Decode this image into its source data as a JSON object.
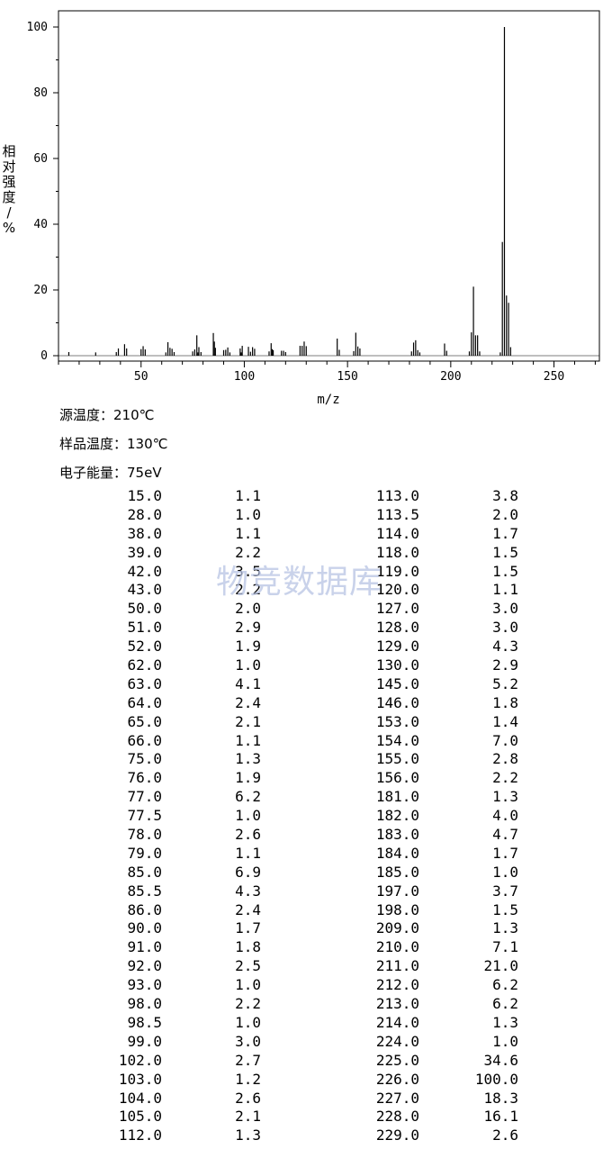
{
  "chart_data": {
    "type": "bar",
    "xlabel": "m/z",
    "ylabel": "相对强度/%",
    "xlim": [
      10,
      272
    ],
    "ylim": [
      0,
      105
    ],
    "x_ticks": [
      50,
      100,
      150,
      200,
      250
    ],
    "y_ticks": [
      0,
      20,
      40,
      60,
      80,
      100
    ],
    "grid": false,
    "series_color": "#000000",
    "peaks": [
      {
        "mz": 15.0,
        "intensity": 1.1
      },
      {
        "mz": 28.0,
        "intensity": 1.0
      },
      {
        "mz": 38.0,
        "intensity": 1.1
      },
      {
        "mz": 39.0,
        "intensity": 2.2
      },
      {
        "mz": 42.0,
        "intensity": 3.5
      },
      {
        "mz": 43.0,
        "intensity": 2.2
      },
      {
        "mz": 50.0,
        "intensity": 2.0
      },
      {
        "mz": 51.0,
        "intensity": 2.9
      },
      {
        "mz": 52.0,
        "intensity": 1.9
      },
      {
        "mz": 62.0,
        "intensity": 1.0
      },
      {
        "mz": 63.0,
        "intensity": 4.1
      },
      {
        "mz": 64.0,
        "intensity": 2.4
      },
      {
        "mz": 65.0,
        "intensity": 2.1
      },
      {
        "mz": 66.0,
        "intensity": 1.1
      },
      {
        "mz": 75.0,
        "intensity": 1.3
      },
      {
        "mz": 76.0,
        "intensity": 1.9
      },
      {
        "mz": 77.0,
        "intensity": 6.2
      },
      {
        "mz": 77.5,
        "intensity": 1.0
      },
      {
        "mz": 78.0,
        "intensity": 2.6
      },
      {
        "mz": 79.0,
        "intensity": 1.1
      },
      {
        "mz": 85.0,
        "intensity": 6.9
      },
      {
        "mz": 85.5,
        "intensity": 4.3
      },
      {
        "mz": 86.0,
        "intensity": 2.4
      },
      {
        "mz": 90.0,
        "intensity": 1.7
      },
      {
        "mz": 91.0,
        "intensity": 1.8
      },
      {
        "mz": 92.0,
        "intensity": 2.5
      },
      {
        "mz": 93.0,
        "intensity": 1.0
      },
      {
        "mz": 98.0,
        "intensity": 2.2
      },
      {
        "mz": 98.5,
        "intensity": 1.0
      },
      {
        "mz": 99.0,
        "intensity": 3.0
      },
      {
        "mz": 102.0,
        "intensity": 2.7
      },
      {
        "mz": 103.0,
        "intensity": 1.2
      },
      {
        "mz": 104.0,
        "intensity": 2.6
      },
      {
        "mz": 105.0,
        "intensity": 2.1
      },
      {
        "mz": 112.0,
        "intensity": 1.3
      },
      {
        "mz": 113.0,
        "intensity": 3.8
      },
      {
        "mz": 113.5,
        "intensity": 2.0
      },
      {
        "mz": 114.0,
        "intensity": 1.7
      },
      {
        "mz": 118.0,
        "intensity": 1.5
      },
      {
        "mz": 119.0,
        "intensity": 1.5
      },
      {
        "mz": 120.0,
        "intensity": 1.1
      },
      {
        "mz": 127.0,
        "intensity": 3.0
      },
      {
        "mz": 128.0,
        "intensity": 3.0
      },
      {
        "mz": 129.0,
        "intensity": 4.3
      },
      {
        "mz": 130.0,
        "intensity": 2.9
      },
      {
        "mz": 145.0,
        "intensity": 5.2
      },
      {
        "mz": 146.0,
        "intensity": 1.8
      },
      {
        "mz": 153.0,
        "intensity": 1.4
      },
      {
        "mz": 154.0,
        "intensity": 7.0
      },
      {
        "mz": 155.0,
        "intensity": 2.8
      },
      {
        "mz": 156.0,
        "intensity": 2.2
      },
      {
        "mz": 181.0,
        "intensity": 1.3
      },
      {
        "mz": 182.0,
        "intensity": 4.0
      },
      {
        "mz": 183.0,
        "intensity": 4.7
      },
      {
        "mz": 184.0,
        "intensity": 1.7
      },
      {
        "mz": 185.0,
        "intensity": 1.0
      },
      {
        "mz": 197.0,
        "intensity": 3.7
      },
      {
        "mz": 198.0,
        "intensity": 1.5
      },
      {
        "mz": 209.0,
        "intensity": 1.3
      },
      {
        "mz": 210.0,
        "intensity": 7.1
      },
      {
        "mz": 211.0,
        "intensity": 21.0
      },
      {
        "mz": 212.0,
        "intensity": 6.2
      },
      {
        "mz": 213.0,
        "intensity": 6.2
      },
      {
        "mz": 214.0,
        "intensity": 1.3
      },
      {
        "mz": 224.0,
        "intensity": 1.0
      },
      {
        "mz": 225.0,
        "intensity": 34.6
      },
      {
        "mz": 226.0,
        "intensity": 100.0
      },
      {
        "mz": 227.0,
        "intensity": 18.3
      },
      {
        "mz": 228.0,
        "intensity": 16.1
      },
      {
        "mz": 229.0,
        "intensity": 2.6
      }
    ]
  },
  "conditions": {
    "source_temp": "源温度：210℃",
    "sample_temp": "样品温度：130℃",
    "electron_energy": "电子能量：75eV"
  },
  "watermark": "物竞数据库",
  "table": {
    "rows": [
      [
        "15.0",
        "1.1",
        "113.0",
        "3.8"
      ],
      [
        "28.0",
        "1.0",
        "113.5",
        "2.0"
      ],
      [
        "38.0",
        "1.1",
        "114.0",
        "1.7"
      ],
      [
        "39.0",
        "2.2",
        "118.0",
        "1.5"
      ],
      [
        "42.0",
        "3.5",
        "119.0",
        "1.5"
      ],
      [
        "43.0",
        "2.2",
        "120.0",
        "1.1"
      ],
      [
        "50.0",
        "2.0",
        "127.0",
        "3.0"
      ],
      [
        "51.0",
        "2.9",
        "128.0",
        "3.0"
      ],
      [
        "52.0",
        "1.9",
        "129.0",
        "4.3"
      ],
      [
        "62.0",
        "1.0",
        "130.0",
        "2.9"
      ],
      [
        "63.0",
        "4.1",
        "145.0",
        "5.2"
      ],
      [
        "64.0",
        "2.4",
        "146.0",
        "1.8"
      ],
      [
        "65.0",
        "2.1",
        "153.0",
        "1.4"
      ],
      [
        "66.0",
        "1.1",
        "154.0",
        "7.0"
      ],
      [
        "75.0",
        "1.3",
        "155.0",
        "2.8"
      ],
      [
        "76.0",
        "1.9",
        "156.0",
        "2.2"
      ],
      [
        "77.0",
        "6.2",
        "181.0",
        "1.3"
      ],
      [
        "77.5",
        "1.0",
        "182.0",
        "4.0"
      ],
      [
        "78.0",
        "2.6",
        "183.0",
        "4.7"
      ],
      [
        "79.0",
        "1.1",
        "184.0",
        "1.7"
      ],
      [
        "85.0",
        "6.9",
        "185.0",
        "1.0"
      ],
      [
        "85.5",
        "4.3",
        "197.0",
        "3.7"
      ],
      [
        "86.0",
        "2.4",
        "198.0",
        "1.5"
      ],
      [
        "90.0",
        "1.7",
        "209.0",
        "1.3"
      ],
      [
        "91.0",
        "1.8",
        "210.0",
        "7.1"
      ],
      [
        "92.0",
        "2.5",
        "211.0",
        "21.0"
      ],
      [
        "93.0",
        "1.0",
        "212.0",
        "6.2"
      ],
      [
        "98.0",
        "2.2",
        "213.0",
        "6.2"
      ],
      [
        "98.5",
        "1.0",
        "214.0",
        "1.3"
      ],
      [
        "99.0",
        "3.0",
        "224.0",
        "1.0"
      ],
      [
        "102.0",
        "2.7",
        "225.0",
        "34.6"
      ],
      [
        "103.0",
        "1.2",
        "226.0",
        "100.0"
      ],
      [
        "104.0",
        "2.6",
        "227.0",
        "18.3"
      ],
      [
        "105.0",
        "2.1",
        "228.0",
        "16.1"
      ],
      [
        "112.0",
        "1.3",
        "229.0",
        "2.6"
      ]
    ]
  }
}
